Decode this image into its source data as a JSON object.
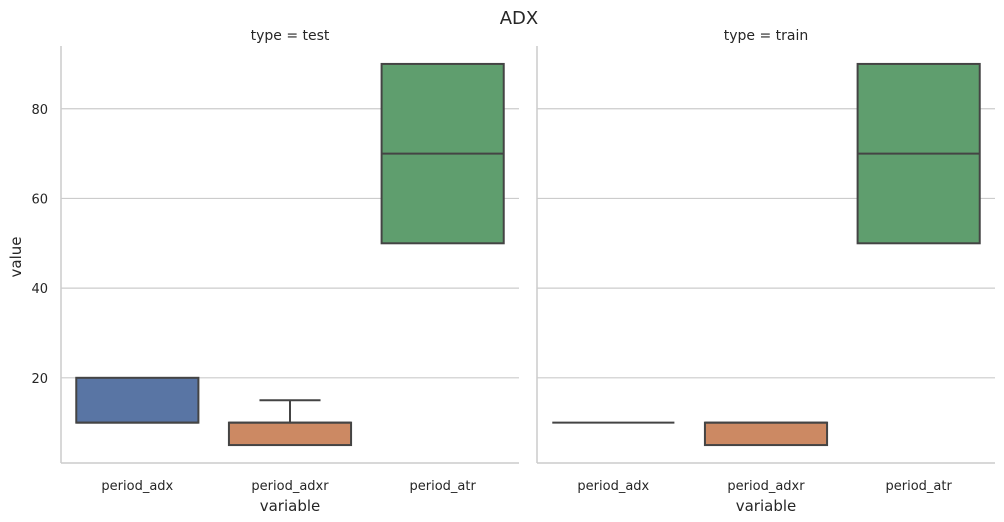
{
  "chart_data": {
    "type": "box",
    "title": "ADX",
    "xlabel": "variable",
    "ylabel": "value",
    "ylim": [
      1,
      94
    ],
    "yticks": [
      20,
      40,
      60,
      80
    ],
    "grid": "horizontal",
    "categories": [
      "period_adx",
      "period_adxr",
      "period_atr"
    ],
    "colors": {
      "period_adx": "#5975a4",
      "period_adxr": "#cc8963",
      "period_atr": "#5f9e6e"
    },
    "panels": [
      {
        "title": "type = test",
        "boxes": [
          {
            "category": "period_adx",
            "whisker_low": 10,
            "q1": 10,
            "median": 10,
            "q3": 20,
            "whisker_high": 20
          },
          {
            "category": "period_adxr",
            "whisker_low": 5,
            "q1": 5,
            "median": 10,
            "q3": 10,
            "whisker_high": 15
          },
          {
            "category": "period_atr",
            "whisker_low": 50,
            "q1": 50,
            "median": 70,
            "q3": 90,
            "whisker_high": 90
          }
        ]
      },
      {
        "title": "type = train",
        "boxes": [
          {
            "category": "period_adx",
            "whisker_low": 10,
            "q1": 10,
            "median": 10,
            "q3": 10,
            "whisker_high": 10
          },
          {
            "category": "period_adxr",
            "whisker_low": 5,
            "q1": 5,
            "median": 10,
            "q3": 10,
            "whisker_high": 10
          },
          {
            "category": "period_atr",
            "whisker_low": 50,
            "q1": 50,
            "median": 70,
            "q3": 90,
            "whisker_high": 90
          }
        ]
      }
    ]
  }
}
